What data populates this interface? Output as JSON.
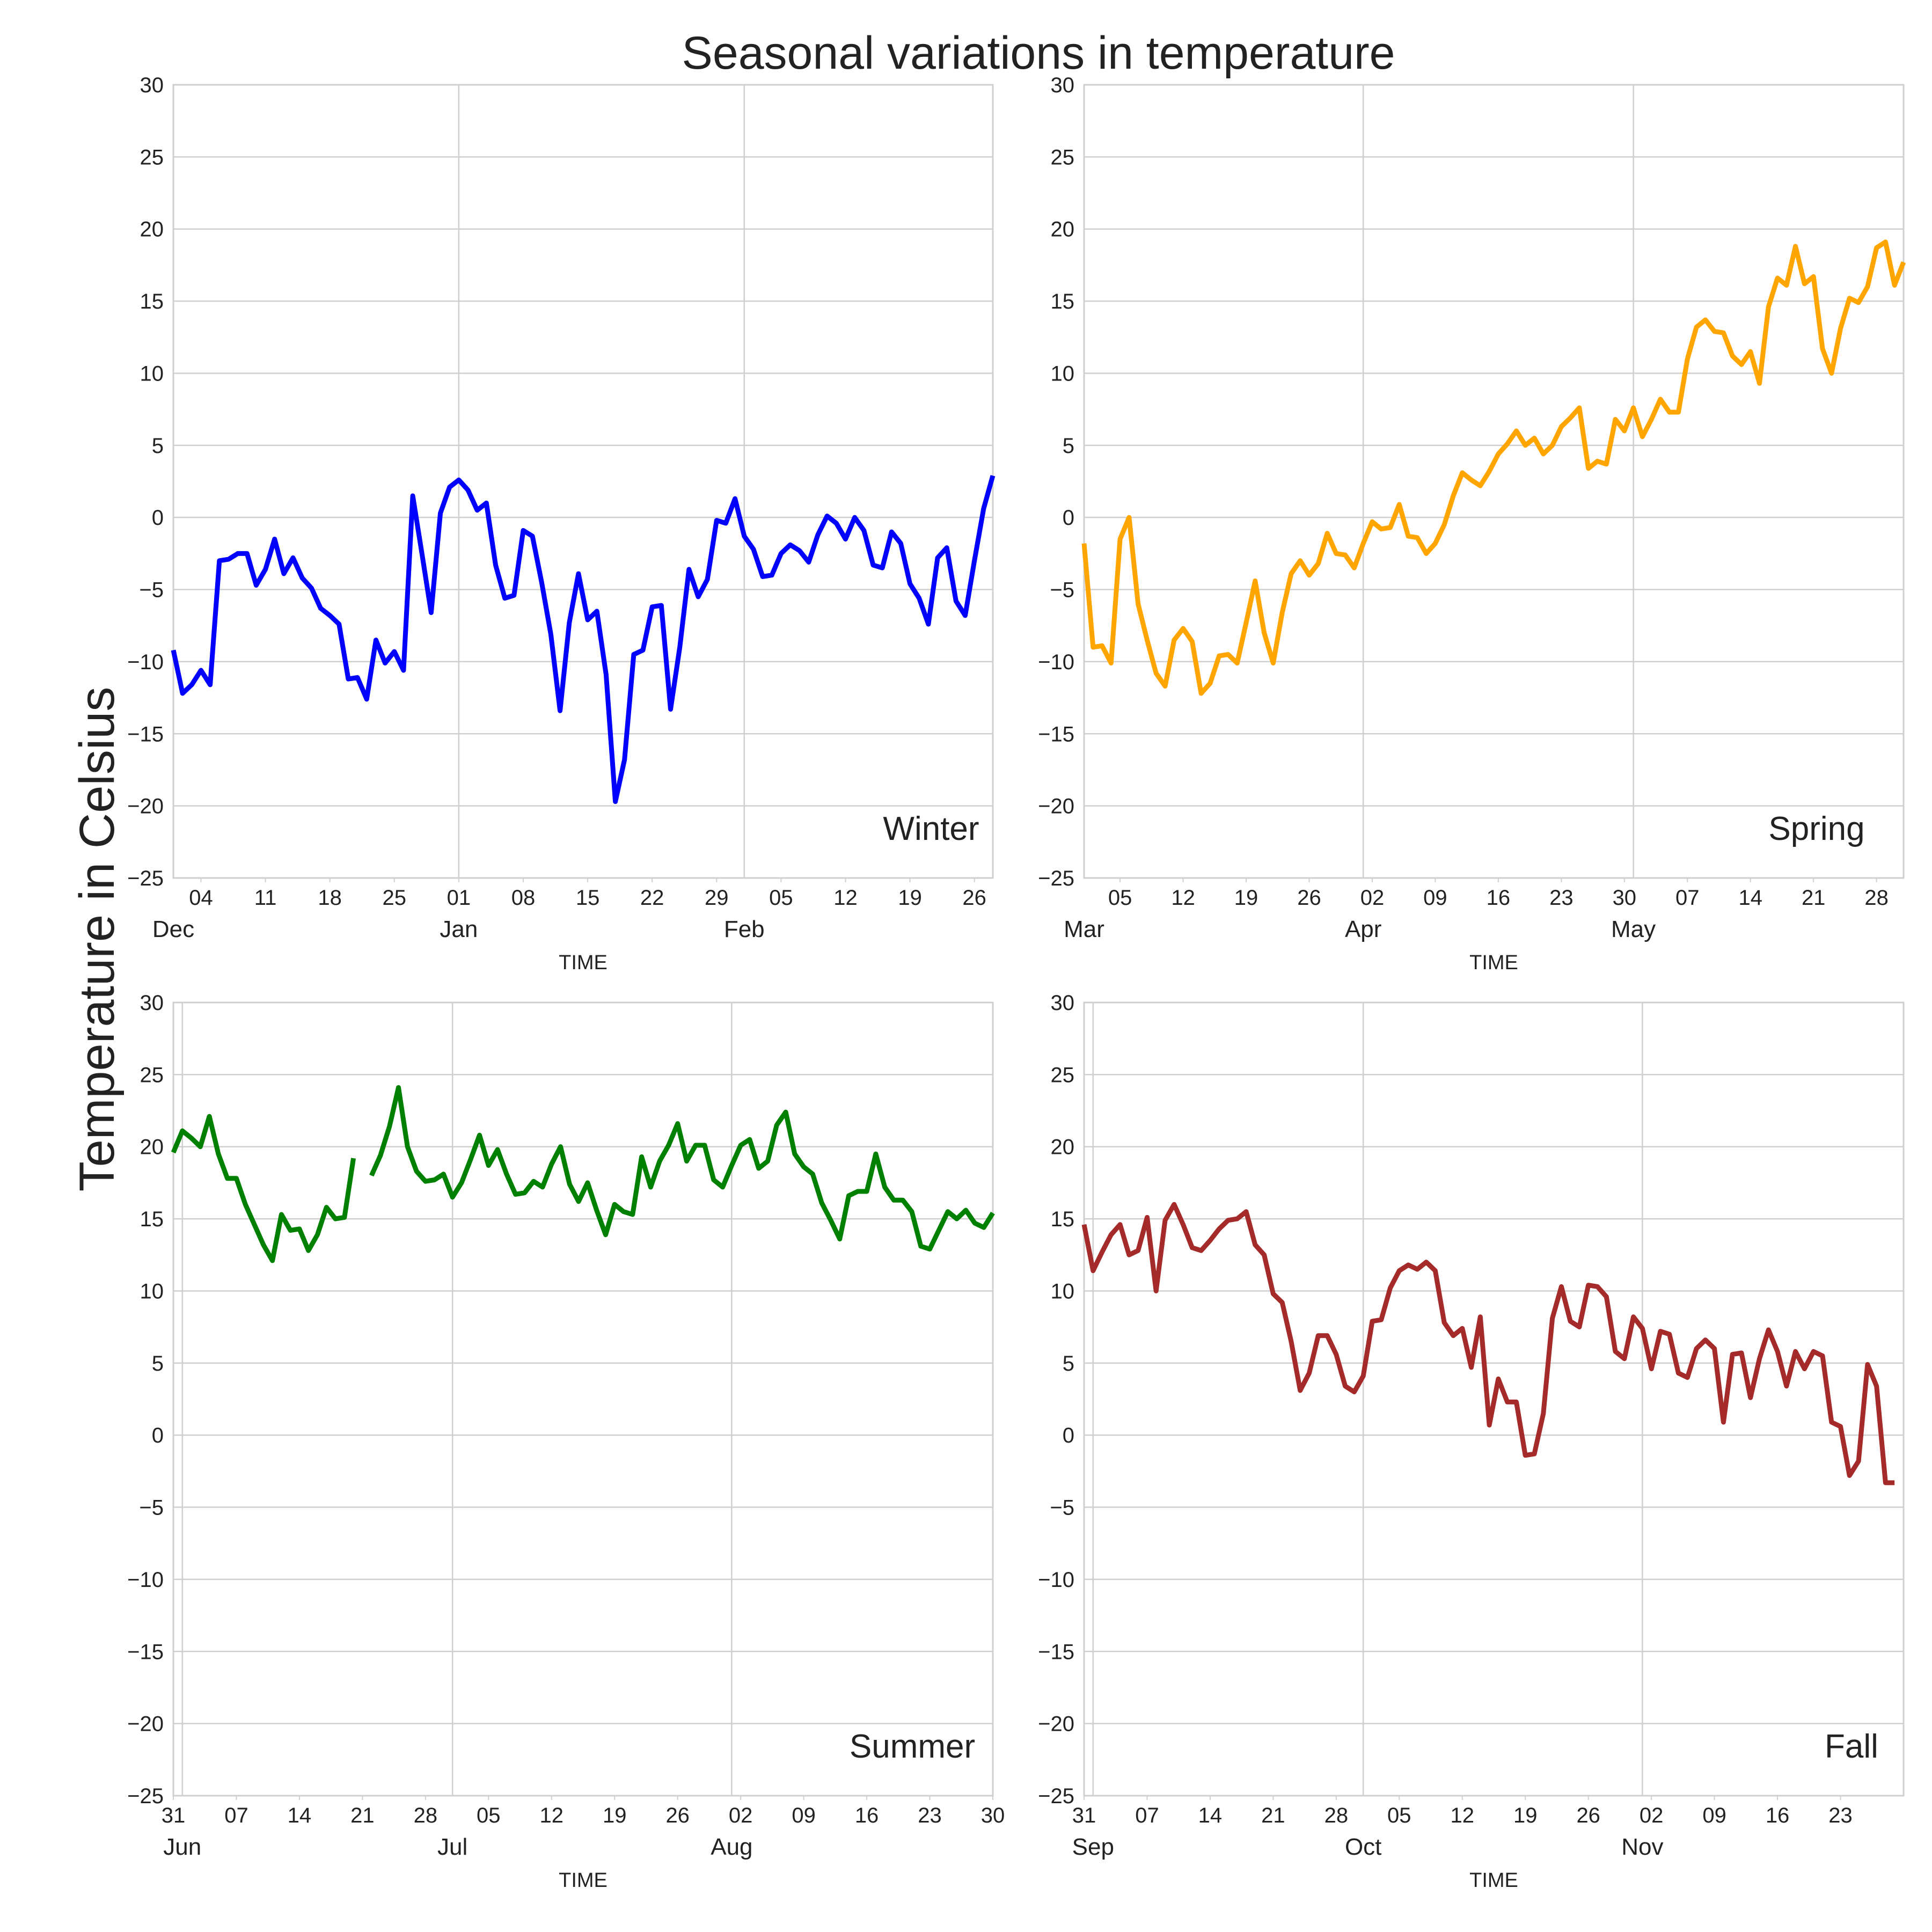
{
  "chart_data": {
    "type": "line",
    "title": "Seasonal variations in temperature",
    "ylabel": "Temperature in Celsius",
    "ylim": [
      -25,
      30
    ],
    "yticks": [
      -25,
      -20,
      -15,
      -10,
      -5,
      0,
      5,
      10,
      15,
      20,
      25,
      30
    ],
    "grid": true,
    "panels": [
      {
        "name": "Winter",
        "color": "#0000ff",
        "xlabel": "TIME",
        "x_start": "2016-12-01",
        "x_end": "2017-02-28",
        "day_ticks": [
          {
            "date": "2016-12-04",
            "label": "04"
          },
          {
            "date": "2016-12-11",
            "label": "11"
          },
          {
            "date": "2016-12-18",
            "label": "18"
          },
          {
            "date": "2016-12-25",
            "label": "25"
          },
          {
            "date": "2017-01-01",
            "label": "01"
          },
          {
            "date": "2017-01-08",
            "label": "08"
          },
          {
            "date": "2017-01-15",
            "label": "15"
          },
          {
            "date": "2017-01-22",
            "label": "22"
          },
          {
            "date": "2017-01-29",
            "label": "29"
          },
          {
            "date": "2017-02-05",
            "label": "05"
          },
          {
            "date": "2017-02-12",
            "label": "12"
          },
          {
            "date": "2017-02-19",
            "label": "19"
          },
          {
            "date": "2017-02-26",
            "label": "26"
          }
        ],
        "month_ticks": [
          {
            "date": "2016-12-01",
            "label": "Dec"
          },
          {
            "date": "2017-01-01",
            "label": "Jan"
          },
          {
            "date": "2017-02-01",
            "label": "Feb"
          }
        ],
        "values": [
          -9.2,
          -12.2,
          -11.6,
          -10.6,
          -11.6,
          -3,
          -2.9,
          -2.5,
          -2.5,
          -4.7,
          -3.6,
          -1.5,
          -3.9,
          -2.8,
          -4.2,
          -4.9,
          -6.3,
          -6.8,
          -7.4,
          -11.2,
          -11.1,
          -12.6,
          -8.5,
          -10.1,
          -9.3,
          -10.6,
          1.5,
          -2.5,
          -6.6,
          0.3,
          2.1,
          2.6,
          1.9,
          0.5,
          1,
          -3.3,
          -5.6,
          -5.4,
          -0.9,
          -1.3,
          -4.5,
          -8.1,
          -13.4,
          -7.3,
          -3.9,
          -7.1,
          -6.5,
          -10.9,
          -19.7,
          -16.8,
          -9.5,
          -9.2,
          -6.2,
          -6.1,
          -13.3,
          -9,
          -3.6,
          -5.5,
          -4.3,
          -0.2,
          -0.4,
          1.3,
          -1.3,
          -2.2,
          -4.1,
          -4,
          -2.5,
          -1.9,
          -2.3,
          -3.1,
          -1.2,
          0.1,
          -0.4,
          -1.5,
          0,
          -0.9,
          -3.3,
          -3.5,
          -1,
          -1.8,
          -4.6,
          -5.6,
          -7.4,
          -2.8,
          -2.1,
          -5.8,
          -6.8,
          -3,
          0.6,
          2.9
        ]
      },
      {
        "name": "Spring",
        "color": "#ffa500",
        "xlabel": "TIME",
        "x_start": "2017-03-01",
        "x_end": "2017-05-31",
        "day_ticks": [
          {
            "date": "2017-03-05",
            "label": "05"
          },
          {
            "date": "2017-03-12",
            "label": "12"
          },
          {
            "date": "2017-03-19",
            "label": "19"
          },
          {
            "date": "2017-03-26",
            "label": "26"
          },
          {
            "date": "2017-04-02",
            "label": "02"
          },
          {
            "date": "2017-04-09",
            "label": "09"
          },
          {
            "date": "2017-04-16",
            "label": "16"
          },
          {
            "date": "2017-04-23",
            "label": "23"
          },
          {
            "date": "2017-04-30",
            "label": "30"
          },
          {
            "date": "2017-05-07",
            "label": "07"
          },
          {
            "date": "2017-05-14",
            "label": "14"
          },
          {
            "date": "2017-05-21",
            "label": "21"
          },
          {
            "date": "2017-05-28",
            "label": "28"
          }
        ],
        "month_ticks": [
          {
            "date": "2017-03-01",
            "label": "Mar"
          },
          {
            "date": "2017-04-01",
            "label": "Apr"
          },
          {
            "date": "2017-05-01",
            "label": "May"
          }
        ],
        "values": [
          -1.8,
          -9,
          -8.9,
          -10.1,
          -1.5,
          0,
          -6,
          -8.5,
          -10.8,
          -11.7,
          -8.5,
          -7.7,
          -8.6,
          -12.2,
          -11.5,
          -9.6,
          -9.5,
          -10.1,
          -7.3,
          -4.4,
          -8,
          -10.1,
          -6.6,
          -3.9,
          -3,
          -4,
          -3.2,
          -1.1,
          -2.5,
          -2.6,
          -3.5,
          -1.8,
          -0.3,
          -0.8,
          -0.7,
          0.9,
          -1.3,
          -1.4,
          -2.5,
          -1.8,
          -0.5,
          1.5,
          3.1,
          2.6,
          2.2,
          3.2,
          4.4,
          5.1,
          6,
          5,
          5.5,
          4.4,
          5,
          6.3,
          6.9,
          7.6,
          3.4,
          3.9,
          3.7,
          6.8,
          6,
          7.6,
          5.6,
          6.8,
          8.2,
          7.3,
          7.3,
          11,
          13.2,
          13.7,
          12.9,
          12.8,
          11.2,
          10.6,
          11.5,
          9.3,
          14.6,
          16.6,
          16.1,
          18.8,
          16.2,
          16.7,
          11.7,
          10,
          13.1,
          15.2,
          14.9,
          16,
          18.7,
          19.1,
          16.1,
          17.7
        ]
      },
      {
        "name": "Summer",
        "color": "#008000",
        "xlabel": "TIME",
        "x_start": "2017-05-31",
        "x_end": "2017-08-30",
        "day_ticks": [
          {
            "date": "2017-05-31",
            "label": "31"
          },
          {
            "date": "2017-06-07",
            "label": "07"
          },
          {
            "date": "2017-06-14",
            "label": "14"
          },
          {
            "date": "2017-06-21",
            "label": "21"
          },
          {
            "date": "2017-06-28",
            "label": "28"
          },
          {
            "date": "2017-07-05",
            "label": "05"
          },
          {
            "date": "2017-07-12",
            "label": "12"
          },
          {
            "date": "2017-07-19",
            "label": "19"
          },
          {
            "date": "2017-07-26",
            "label": "26"
          },
          {
            "date": "2017-08-02",
            "label": "02"
          },
          {
            "date": "2017-08-09",
            "label": "09"
          },
          {
            "date": "2017-08-16",
            "label": "16"
          },
          {
            "date": "2017-08-23",
            "label": "23"
          },
          {
            "date": "2017-08-30",
            "label": "30"
          }
        ],
        "month_ticks": [
          {
            "date": "2017-06-01",
            "label": "Jun"
          },
          {
            "date": "2017-07-01",
            "label": "Jul"
          },
          {
            "date": "2017-08-01",
            "label": "Aug"
          }
        ],
        "values": [
          19.6,
          21.1,
          20.6,
          20,
          22.1,
          19.5,
          17.8,
          17.8,
          16,
          14.6,
          13.2,
          12.1,
          15.3,
          14.2,
          14.3,
          12.8,
          13.9,
          15.8,
          15,
          15.1,
          19.2,
          null,
          18,
          19.4,
          21.4,
          24.1,
          20,
          18.3,
          17.6,
          17.7,
          18.1,
          16.5,
          17.5,
          19.1,
          20.8,
          18.7,
          19.8,
          18.1,
          16.7,
          16.8,
          17.6,
          17.2,
          18.8,
          20,
          17.4,
          16.2,
          17.5,
          15.6,
          13.9,
          16,
          15.5,
          15.3,
          19.3,
          17.2,
          19,
          20.1,
          21.6,
          19,
          20.1,
          20.1,
          17.7,
          17.2,
          18.7,
          20.1,
          20.5,
          18.5,
          19,
          21.5,
          22.4,
          19.5,
          18.6,
          18.1,
          16.1,
          14.9,
          13.6,
          16.6,
          16.9,
          16.9,
          19.5,
          17.2,
          16.3,
          16.3,
          15.5,
          13.1,
          12.9,
          14.2,
          15.5,
          15,
          15.6,
          14.7,
          14.4,
          15.4
        ]
      },
      {
        "name": "Fall",
        "color": "#a52a2a",
        "xlabel": "TIME",
        "x_start": "2017-08-31",
        "x_end": "2017-11-30",
        "day_ticks": [
          {
            "date": "2017-08-31",
            "label": "31"
          },
          {
            "date": "2017-09-07",
            "label": "07"
          },
          {
            "date": "2017-09-14",
            "label": "14"
          },
          {
            "date": "2017-09-21",
            "label": "21"
          },
          {
            "date": "2017-09-28",
            "label": "28"
          },
          {
            "date": "2017-10-05",
            "label": "05"
          },
          {
            "date": "2017-10-12",
            "label": "12"
          },
          {
            "date": "2017-10-19",
            "label": "19"
          },
          {
            "date": "2017-10-26",
            "label": "26"
          },
          {
            "date": "2017-11-02",
            "label": "02"
          },
          {
            "date": "2017-11-09",
            "label": "09"
          },
          {
            "date": "2017-11-16",
            "label": "16"
          },
          {
            "date": "2017-11-23",
            "label": "23"
          }
        ],
        "month_ticks": [
          {
            "date": "2017-09-01",
            "label": "Sep"
          },
          {
            "date": "2017-10-01",
            "label": "Oct"
          },
          {
            "date": "2017-11-01",
            "label": "Nov"
          }
        ],
        "values": [
          14.6,
          11.4,
          12.7,
          13.9,
          14.6,
          12.5,
          12.8,
          15.1,
          10,
          14.9,
          16,
          14.6,
          13,
          12.8,
          13.5,
          14.3,
          14.9,
          15,
          15.5,
          13.2,
          12.5,
          9.8,
          9.2,
          6.5,
          3.1,
          4.3,
          6.9,
          6.9,
          5.6,
          3.4,
          3,
          4.1,
          7.9,
          8,
          10.2,
          11.4,
          11.8,
          11.5,
          12,
          11.4,
          7.8,
          6.9,
          7.4,
          4.7,
          8.2,
          0.7,
          3.9,
          2.3,
          2.3,
          -1.4,
          -1.3,
          1.5,
          8.1,
          10.3,
          7.9,
          7.5,
          10.4,
          10.3,
          9.6,
          5.8,
          5.3,
          8.2,
          7.4,
          4.6,
          7.2,
          7,
          4.3,
          4,
          6,
          6.6,
          6,
          0.9,
          5.6,
          5.7,
          2.6,
          5.3,
          7.3,
          5.8,
          3.4,
          5.8,
          4.6,
          5.8,
          5.5,
          0.9,
          0.6,
          -2.8,
          -1.8,
          4.9,
          3.4,
          -3.3,
          -3.3
        ]
      }
    ]
  }
}
